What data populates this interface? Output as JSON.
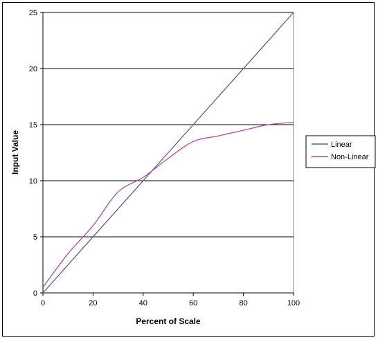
{
  "chart_data": {
    "type": "line",
    "title": "",
    "xlabel": "Percent of Scale",
    "ylabel": "Input Value",
    "xlim": [
      0,
      100
    ],
    "ylim": [
      0,
      25
    ],
    "xticks": [
      "0",
      "20",
      "40",
      "60",
      "80",
      "100"
    ],
    "yticks": [
      "0",
      "5",
      "10",
      "15",
      "20",
      "25"
    ],
    "grid": "horizontal",
    "legend_position": "right",
    "series": [
      {
        "name": "Linear",
        "color": "#5a5a9e",
        "x": [
          0,
          100
        ],
        "y": [
          0,
          25
        ]
      },
      {
        "name": "Non-Linear",
        "color": "#b04a9c",
        "x": [
          0,
          10,
          20,
          30,
          40,
          50,
          60,
          70,
          80,
          90,
          100
        ],
        "y": [
          0.5,
          3.5,
          6.0,
          9.0,
          10.3,
          12.0,
          13.5,
          14.0,
          14.5,
          15.0,
          15.2
        ]
      }
    ]
  }
}
